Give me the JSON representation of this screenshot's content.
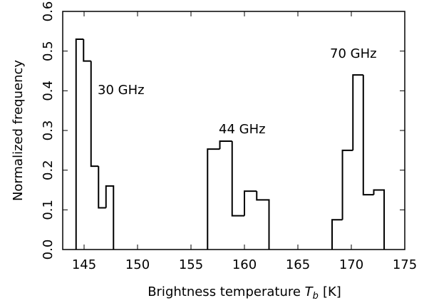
{
  "chart_data": {
    "type": "histogram",
    "x_label": "Brightness temperature",
    "x_label_symbol": "T",
    "x_label_subscript": "b",
    "x_label_unit": "[K]",
    "y_label": "Normalized frequency",
    "xlim": [
      143,
      175
    ],
    "xticks": [
      145,
      150,
      155,
      160,
      165,
      170,
      175
    ],
    "ylim": [
      0,
      0.6
    ],
    "yticks": [
      {
        "value": 0,
        "label": "0.0"
      },
      0.1,
      0.2,
      0.3,
      0.4,
      0.5,
      0.6
    ],
    "series": [
      {
        "name": "30 GHz",
        "color": "#000000",
        "bins": [
          144.25,
          144.95,
          145.65,
          146.35,
          147.05,
          147.75
        ],
        "values": [
          0.53,
          0.475,
          0.21,
          0.105,
          0.16
        ]
      },
      {
        "name": "44 GHz",
        "color": "#000000",
        "bins": [
          156.55,
          157.7,
          158.85,
          160.0,
          161.15,
          162.3
        ],
        "values": [
          0.253,
          0.273,
          0.085,
          0.147,
          0.125
        ]
      },
      {
        "name": "70 GHz",
        "color": "#000000",
        "bins": [
          168.2,
          169.17,
          170.15,
          171.12,
          172.1,
          173.07
        ],
        "values": [
          0.075,
          0.25,
          0.44,
          0.138,
          0.15
        ]
      }
    ]
  }
}
